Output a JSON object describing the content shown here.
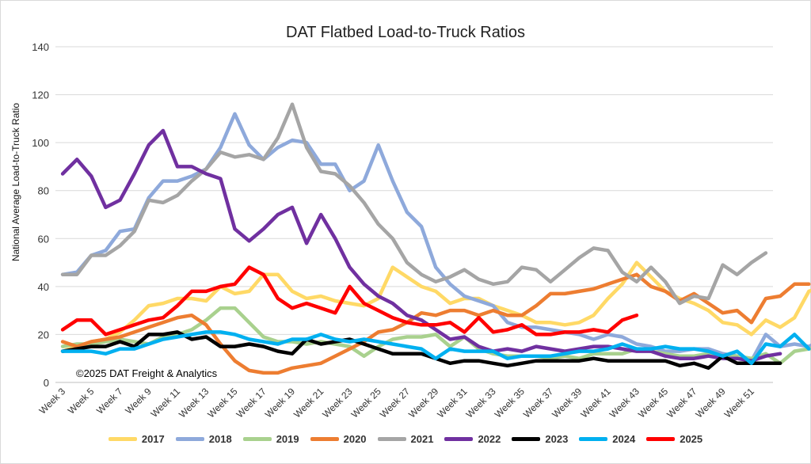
{
  "chart_data": {
    "type": "line",
    "title": "DAT Flatbed Load-to-Truck Ratios",
    "ylabel": "National Average Load-to-Truck Ratio",
    "xlabel": "",
    "ylim": [
      0,
      140
    ],
    "yticks": [
      0,
      20,
      40,
      60,
      80,
      100,
      120,
      140
    ],
    "copyright": "©2025 DAT Freight & Analytics",
    "x_first_week": 3,
    "x_last_week": 52,
    "tick_labels": [
      "Week 3",
      "Week 5",
      "Week 7",
      "Week 9",
      "Week 11",
      "Week 13",
      "Week 15",
      "Week 17",
      "Week 19",
      "Week 21",
      "Week 23",
      "Week 25",
      "Week 27",
      "Week 29",
      "Week 31",
      "Week 33",
      "Week 35",
      "Week 37",
      "Week 39",
      "Week 41",
      "Week 43",
      "Week 45",
      "Week 47",
      "Week 49",
      "Week 51"
    ],
    "legend_position": "bottom",
    "grid": "horizontal",
    "series": [
      {
        "name": "2017",
        "color": "#FFD966",
        "values": [
          13,
          15,
          17,
          18,
          21,
          26,
          32,
          33,
          35,
          35,
          34,
          40,
          37,
          38,
          45,
          45,
          38,
          35,
          36,
          34,
          33,
          32,
          35,
          48,
          44,
          40,
          38,
          33,
          35,
          35,
          32,
          30,
          28,
          25,
          25,
          24,
          25,
          28,
          35,
          41,
          50,
          44,
          38,
          35,
          33,
          30,
          25,
          24,
          20,
          26,
          23,
          27,
          38,
          40
        ]
      },
      {
        "name": "2018",
        "color": "#8EA9DB",
        "values": [
          45,
          46,
          53,
          55,
          63,
          64,
          77,
          84,
          84,
          86,
          89,
          98,
          112,
          99,
          93,
          98,
          101,
          100,
          91,
          91,
          80,
          84,
          99,
          84,
          71,
          65,
          48,
          41,
          36,
          34,
          32,
          25,
          23,
          23,
          22,
          21,
          20,
          18,
          20,
          19,
          16,
          15,
          13,
          13,
          14,
          14,
          12,
          11,
          9,
          20,
          15,
          16,
          15,
          18,
          19
        ]
      },
      {
        "name": "2019",
        "color": "#A9D18E",
        "values": [
          15,
          16,
          16,
          17,
          18,
          17,
          16,
          19,
          20,
          22,
          26,
          31,
          31,
          25,
          19,
          17,
          17,
          16,
          17,
          16,
          15,
          11,
          15,
          18,
          19,
          19,
          20,
          15,
          19,
          14,
          12,
          11,
          11,
          11,
          10,
          11,
          10,
          12,
          12,
          12,
          14,
          13,
          12,
          11,
          11,
          12,
          11,
          11,
          10,
          12,
          8,
          13,
          14,
          15,
          11
        ]
      },
      {
        "name": "2020",
        "color": "#ED7D31",
        "values": [
          17,
          15,
          17,
          18,
          19,
          21,
          23,
          25,
          27,
          28,
          24,
          16,
          9,
          5,
          4,
          4,
          6,
          7,
          8,
          11,
          14,
          17,
          21,
          22,
          25,
          29,
          28,
          30,
          30,
          28,
          30,
          28,
          28,
          32,
          37,
          37,
          38,
          39,
          41,
          43,
          45,
          40,
          38,
          34,
          37,
          33,
          29,
          30,
          25,
          35,
          36,
          41,
          41
        ]
      },
      {
        "name": "2021",
        "color": "#A5A5A5",
        "values": [
          45,
          45,
          53,
          53,
          57,
          63,
          76,
          75,
          78,
          84,
          89,
          96,
          94,
          95,
          93,
          102,
          116,
          98,
          88,
          87,
          82,
          75,
          66,
          60,
          50,
          45,
          42,
          44,
          47,
          43,
          41,
          42,
          48,
          47,
          42,
          47,
          52,
          56,
          55,
          46,
          42,
          48,
          42,
          33,
          36,
          35,
          49,
          45,
          50,
          54
        ]
      },
      {
        "name": "2022",
        "color": "#7030A0",
        "values": [
          87,
          93,
          86,
          73,
          76,
          87,
          99,
          105,
          90,
          90,
          87,
          85,
          64,
          59,
          64,
          70,
          73,
          58,
          70,
          60,
          48,
          41,
          36,
          33,
          28,
          26,
          22,
          18,
          19,
          15,
          13,
          14,
          13,
          15,
          14,
          13,
          14,
          15,
          15,
          14,
          13,
          13,
          11,
          10,
          10,
          11,
          10,
          10,
          9,
          11,
          12
        ]
      },
      {
        "name": "2023",
        "color": "#000000",
        "values": [
          13,
          14,
          15,
          15,
          17,
          15,
          20,
          20,
          21,
          18,
          19,
          15,
          15,
          16,
          15,
          13,
          12,
          18,
          16,
          17,
          18,
          16,
          14,
          12,
          12,
          12,
          10,
          8,
          9,
          9,
          8,
          7,
          8,
          9,
          9,
          9,
          9,
          10,
          9,
          9,
          9,
          9,
          9,
          7,
          8,
          6,
          11,
          8,
          8,
          8,
          8
        ]
      },
      {
        "name": "2024",
        "color": "#00B0F0",
        "values": [
          13,
          13,
          13,
          12,
          14,
          14,
          16,
          18,
          19,
          20,
          21,
          21,
          20,
          18,
          17,
          16,
          18,
          18,
          20,
          18,
          17,
          18,
          17,
          16,
          15,
          14,
          10,
          14,
          13,
          13,
          13,
          10,
          11,
          11,
          11,
          12,
          13,
          13,
          14,
          16,
          14,
          14,
          15,
          14,
          14,
          13,
          11,
          13,
          8,
          16,
          15,
          20,
          14
        ]
      },
      {
        "name": "2025",
        "color": "#FF0000",
        "values": [
          22,
          26,
          26,
          20,
          22,
          24,
          26,
          27,
          32,
          38,
          38,
          40,
          41,
          48,
          45,
          35,
          31,
          33,
          31,
          29,
          40,
          33,
          30,
          27,
          25,
          24,
          24,
          25,
          21,
          27,
          21,
          22,
          24,
          20,
          20,
          21,
          21,
          22,
          21,
          26,
          28
        ]
      }
    ]
  }
}
